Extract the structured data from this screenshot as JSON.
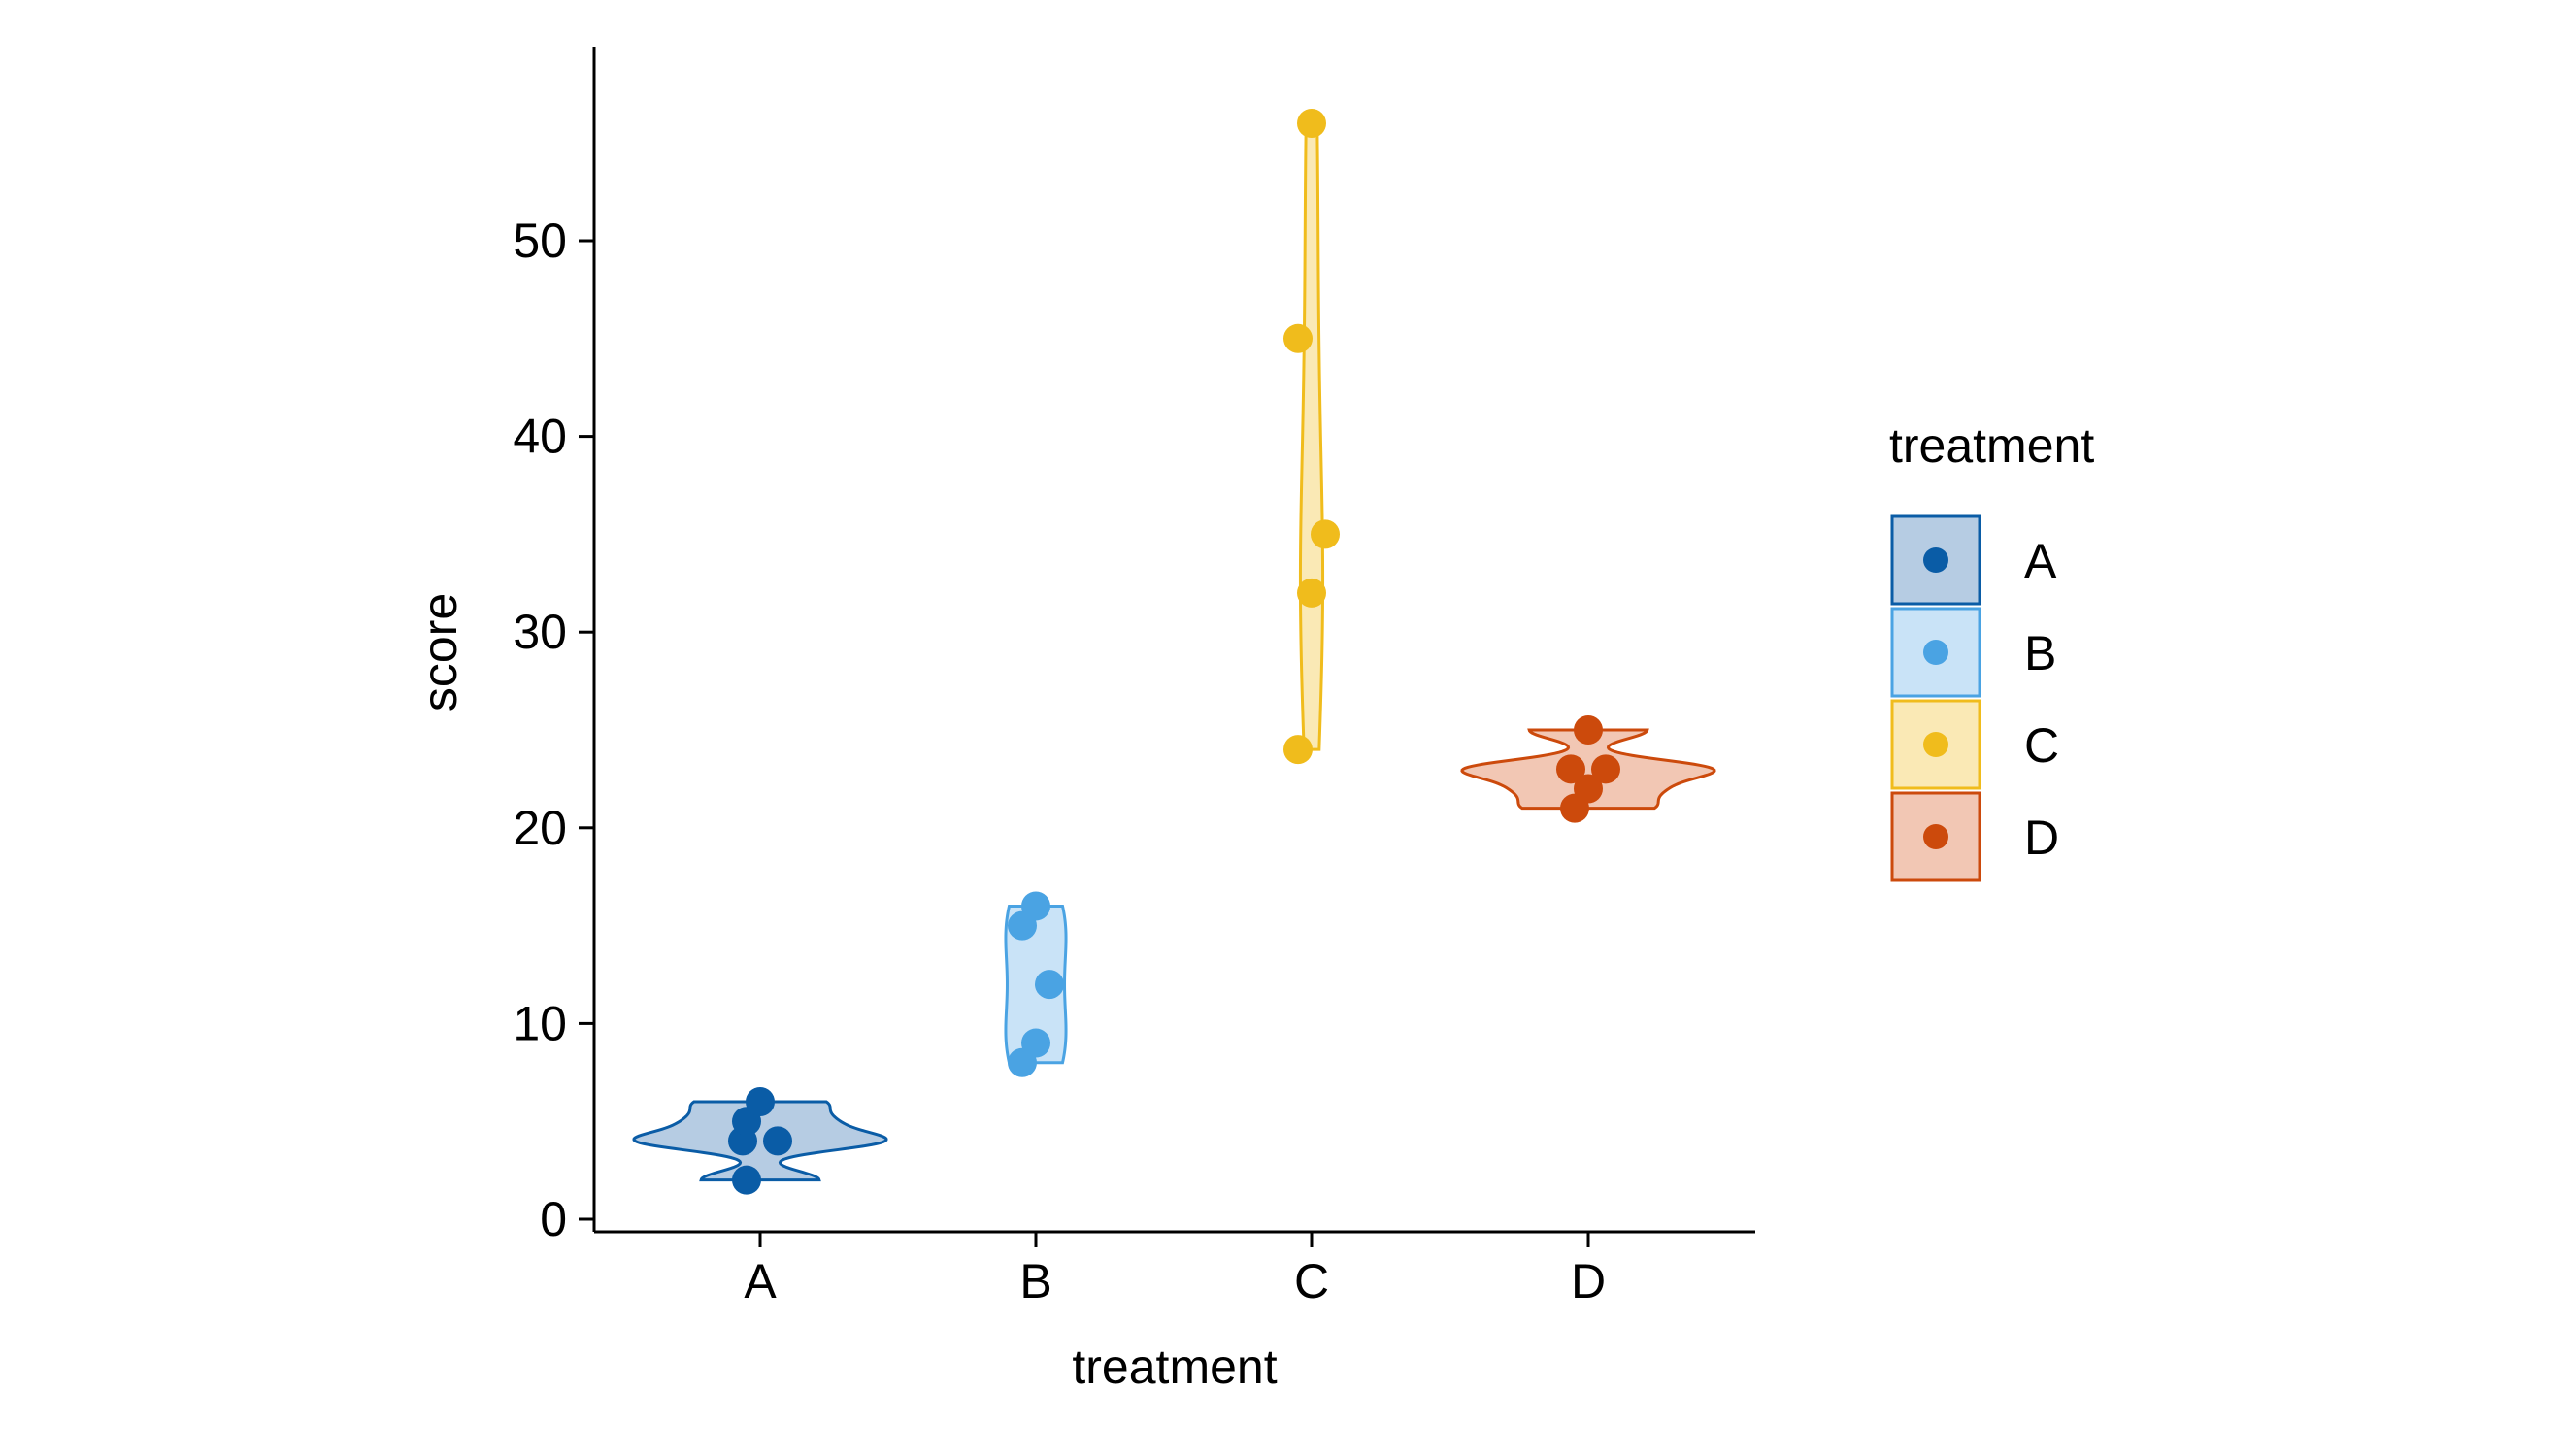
{
  "chart_data": {
    "type": "violin",
    "title": "",
    "xlabel": "treatment",
    "ylabel": "score",
    "categories": [
      "A",
      "B",
      "C",
      "D"
    ],
    "ylim": [
      -0.6,
      59
    ],
    "yticks": [
      0,
      10,
      20,
      30,
      40,
      50
    ],
    "groups": [
      {
        "name": "A",
        "color": "#0a5ca6",
        "fill": "#b6cce3",
        "points": [
          2,
          4,
          4,
          5,
          6
        ]
      },
      {
        "name": "B",
        "color": "#4aa3e3",
        "fill": "#c9e3f7",
        "points": [
          8,
          9,
          12,
          15,
          16
        ]
      },
      {
        "name": "C",
        "color": "#f0bc1c",
        "fill": "#fae9b5",
        "points": [
          24,
          32,
          35,
          45,
          56
        ]
      },
      {
        "name": "D",
        "color": "#cc4a0c",
        "fill": "#f2c7b4",
        "points": [
          21,
          22,
          23,
          23,
          25
        ]
      }
    ],
    "legend": {
      "title": "treatment",
      "position": "right",
      "entries": [
        "A",
        "B",
        "C",
        "D"
      ]
    }
  }
}
